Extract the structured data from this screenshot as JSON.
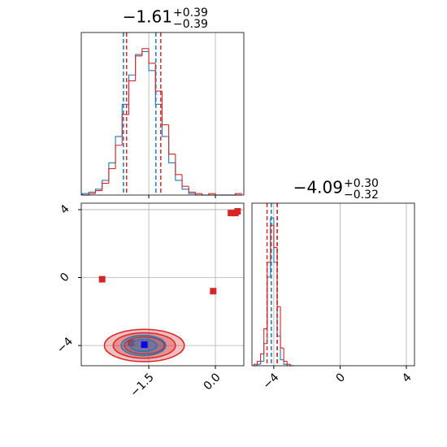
{
  "chart_data": [
    {
      "type": "histogram",
      "title": {
        "main": "−1.61",
        "upper": "+0.39",
        "lower": "−0.39"
      },
      "bins": [
        -3.0,
        -2.85,
        -2.7,
        -2.55,
        -2.4,
        -2.25,
        -2.1,
        -1.95,
        -1.8,
        -1.65,
        -1.5,
        -1.35,
        -1.2,
        -1.05,
        -0.9,
        -0.75,
        -0.6,
        -0.45,
        -0.3,
        -0.15,
        0.0,
        0.15,
        0.3,
        0.45,
        0.6
      ],
      "series": [
        {
          "color": "#1f77b4",
          "values": [
            1,
            2,
            4,
            10,
            22,
            40,
            62,
            82,
            96,
            98,
            85,
            62,
            40,
            22,
            10,
            4,
            1,
            0,
            0,
            0,
            0,
            0,
            0,
            0
          ],
          "quantiles": [
            -2.07,
            -1.34
          ]
        },
        {
          "color": "#d62728",
          "values": [
            0,
            1,
            3,
            8,
            18,
            34,
            55,
            78,
            95,
            100,
            90,
            71,
            48,
            28,
            14,
            6,
            2,
            1,
            0,
            1,
            0,
            0,
            0,
            1
          ],
          "quantiles": [
            -2.0,
            -1.23
          ]
        }
      ],
      "xlim": [
        -3.02,
        0.64
      ],
      "ylim": [
        0,
        111
      ],
      "xticks": [
        -1.5,
        0
      ],
      "grid": true
    },
    {
      "type": "contour",
      "series": [
        {
          "color": "#d62728",
          "contours": [
            {
              "cx": -1.6,
              "cy": -4.0,
              "rx": 0.9,
              "ry": 0.95
            },
            {
              "cx": -1.6,
              "cy": -4.0,
              "rx": 0.7,
              "ry": 0.75
            },
            {
              "cx": -1.6,
              "cy": -4.0,
              "rx": 0.45,
              "ry": 0.5
            }
          ],
          "points": {
            "x": [
              -2.55,
              -0.05,
              0.35,
              0.45,
              0.5,
              -1.9
            ],
            "y": [
              -0.1,
              -0.8,
              3.8,
              3.8,
              3.9,
              -3.85
            ]
          }
        },
        {
          "color": "#1f77b4",
          "contours": [
            {
              "cx": -1.62,
              "cy": -4.0,
              "rx": 0.5,
              "ry": 0.6
            },
            {
              "cx": -1.62,
              "cy": -4.0,
              "rx": 0.3,
              "ry": 0.35
            }
          ],
          "points": {
            "x": [
              -1.6
            ],
            "y": [
              -3.95
            ]
          },
          "point_color": "#0000ff"
        }
      ],
      "xlim": [
        -3.02,
        0.64
      ],
      "ylim": [
        -5.19,
        4.38
      ],
      "xticks": [
        {
          "value": -1.5,
          "label": "−1.5"
        },
        {
          "value": 0,
          "label": "0.0"
        }
      ],
      "yticks": [
        {
          "value": -4,
          "label": "−4"
        },
        0,
        4
      ],
      "grid": true
    },
    {
      "type": "histogram",
      "title": {
        "main": "−4.09",
        "upper": "+0.30",
        "lower": "−0.32"
      },
      "bins": [
        -5.2,
        -5.0,
        -4.8,
        -4.6,
        -4.4,
        -4.2,
        -4.0,
        -3.8,
        -3.6,
        -3.4,
        -3.2,
        -3.0,
        -2.8
      ],
      "series": [
        {
          "color": "#1f77b4",
          "values": [
            0,
            1,
            3,
            15,
            60,
            100,
            70,
            20,
            4,
            1,
            0,
            0
          ],
          "quantiles": [
            -4.15,
            -3.8
          ]
        },
        {
          "color": "#d62728",
          "values": [
            1,
            3,
            8,
            25,
            70,
            95,
            80,
            40,
            12,
            3,
            1,
            0
          ],
          "quantiles": [
            -4.41,
            -3.79
          ]
        }
      ],
      "xlim": [
        -5.32,
        4.49
      ],
      "ylim": [
        0,
        110
      ],
      "xticks": [
        {
          "value": -4,
          "label": "−4"
        },
        0,
        4
      ],
      "grid": true
    }
  ]
}
